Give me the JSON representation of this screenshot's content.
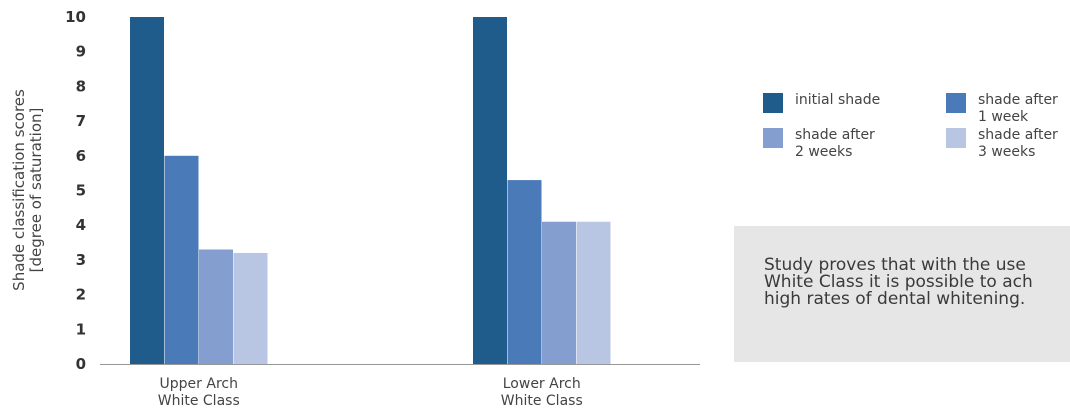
{
  "chart_data": {
    "type": "bar",
    "ylabel": "Shade classification scores\n[degree of saturation]",
    "ylim": [
      0,
      10
    ],
    "yticks": [
      0,
      1,
      2,
      3,
      4,
      5,
      6,
      7,
      8,
      9,
      10
    ],
    "categories": [
      "Upper Arch\nWhite Class",
      "Lower Arch\nWhite Class"
    ],
    "series": [
      {
        "name": "initial shade",
        "color": "#1f5c8b",
        "values": [
          10,
          10
        ]
      },
      {
        "name": "shade after\n1 week",
        "color": "#4a7ab8",
        "values": [
          6.0,
          5.3
        ]
      },
      {
        "name": "shade after\n2 weeks",
        "color": "#849fcf",
        "values": [
          3.3,
          4.1
        ]
      },
      {
        "name": "shade after\n3 weeks",
        "color": "#b8c6e3",
        "values": [
          3.2,
          4.1
        ]
      }
    ],
    "legend_position": "right",
    "grid": false
  },
  "note": {
    "text": "Study proves that with the use\nWhite Class it is possible to ach\nhigh rates of dental whitening."
  }
}
